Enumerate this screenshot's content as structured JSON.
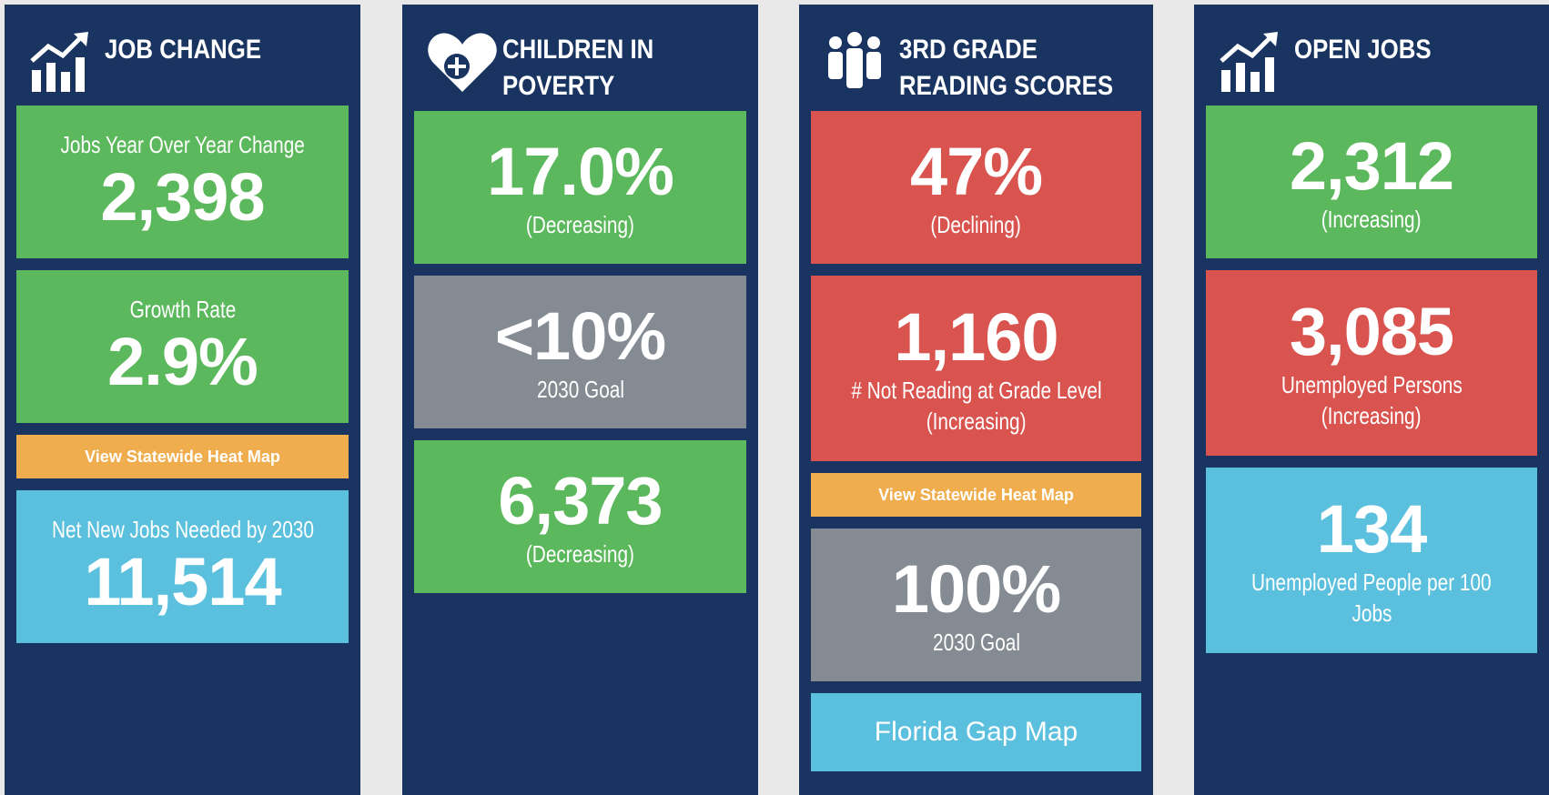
{
  "columns": [
    {
      "title_lines": [
        "JOB CHANGE"
      ],
      "tiles": [
        {
          "color": "#5cb85c",
          "value": "2,398",
          "caption": [
            "Jobs Year Over Year Change"
          ],
          "caption_above": true
        },
        {
          "color": "#5cb85c",
          "value": "2.9%",
          "caption": [
            "Growth Rate"
          ],
          "caption_above": true
        },
        {
          "color": "#f0ad4e",
          "button": "View Statewide Heat Map"
        },
        {
          "color": "#5bc0de",
          "value": "11,514",
          "caption": [
            "Net New Jobs Needed by 2030"
          ],
          "caption_above": true
        }
      ]
    },
    {
      "title_lines": [
        "CHILDREN IN",
        "POVERTY"
      ],
      "tiles": [
        {
          "color": "#5cb85c",
          "value": "17.0%",
          "caption": [
            "(Decreasing)"
          ]
        },
        {
          "color": "#848b93",
          "value": "<10%",
          "caption": [
            "2030 Goal"
          ]
        },
        {
          "color": "#5cb85c",
          "value": "6,373",
          "caption": [
            "(Decreasing)"
          ]
        }
      ]
    },
    {
      "title_lines": [
        "3RD GRADE",
        "READING SCORES"
      ],
      "tiles": [
        {
          "color": "#d9534f",
          "value": "47%",
          "caption": [
            "(Declining)"
          ]
        },
        {
          "color": "#d9534f",
          "value": "1,160",
          "caption": [
            "# Not Reading at Grade Level",
            "(Increasing)"
          ]
        },
        {
          "color": "#f0ad4e",
          "button": "View Statewide Heat Map"
        },
        {
          "color": "#848b93",
          "value": "100%",
          "caption": [
            "2030 Goal"
          ]
        },
        {
          "color": "#5bc0de",
          "link": "Florida Gap Map"
        }
      ]
    },
    {
      "title_lines": [
        "OPEN JOBS"
      ],
      "tiles": [
        {
          "color": "#5cb85c",
          "value": "2,312",
          "caption": [
            "(Increasing)"
          ]
        },
        {
          "color": "#d9534f",
          "value": "3,085",
          "caption": [
            "Unemployed Persons",
            "(Increasing)"
          ]
        },
        {
          "color": "#5bc0de",
          "value": "134",
          "caption": [
            "Unemployed People per 100",
            "Jobs"
          ]
        }
      ]
    }
  ]
}
